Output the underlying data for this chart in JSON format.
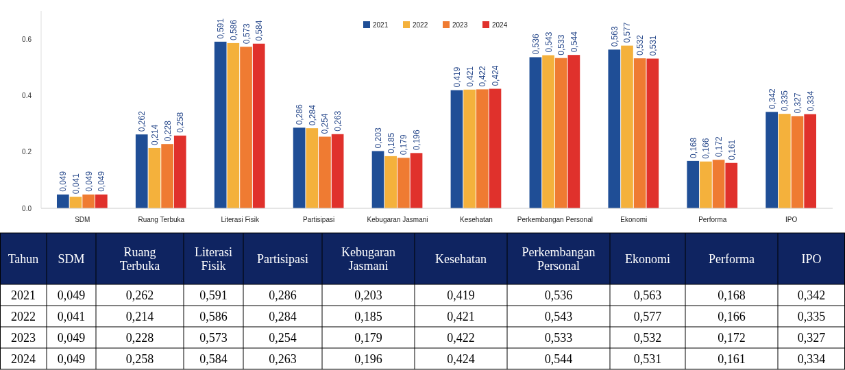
{
  "chart_data": {
    "type": "bar",
    "categories": [
      "SDM",
      "Ruang Terbuka",
      "Literasi Fisik",
      "Partisipasi",
      "Kebugaran Jasmani",
      "Kesehatan",
      "Perkembangan Personal",
      "Ekonomi",
      "Performa",
      "IPO"
    ],
    "series": [
      {
        "name": "2021",
        "color": "#1f4e96",
        "values": [
          0.049,
          0.262,
          0.591,
          0.286,
          0.203,
          0.419,
          0.536,
          0.563,
          0.168,
          0.342
        ],
        "value_labels": [
          "0,049",
          "0,262",
          "0,591",
          "0,286",
          "0,203",
          "0,419",
          "0,536",
          "0,563",
          "0,168",
          "0,342"
        ]
      },
      {
        "name": "2022",
        "color": "#f4b13c",
        "values": [
          0.041,
          0.214,
          0.586,
          0.284,
          0.185,
          0.421,
          0.543,
          0.577,
          0.166,
          0.335
        ],
        "value_labels": [
          "0,041",
          "0,214",
          "0,586",
          "0,284",
          "0,185",
          "0,421",
          "0,543",
          "0,577",
          "0,166",
          "0,335"
        ]
      },
      {
        "name": "2023",
        "color": "#ef7b32",
        "values": [
          0.049,
          0.228,
          0.573,
          0.254,
          0.179,
          0.422,
          0.533,
          0.532,
          0.172,
          0.327
        ],
        "value_labels": [
          "0,049",
          "0,228",
          "0,573",
          "0,254",
          "0,179",
          "0,422",
          "0,533",
          "0,532",
          "0,172",
          "0,327"
        ]
      },
      {
        "name": "2024",
        "color": "#e0312c",
        "values": [
          0.049,
          0.258,
          0.584,
          0.263,
          0.196,
          0.424,
          0.544,
          0.531,
          0.161,
          0.334
        ],
        "value_labels": [
          "0,049",
          "0,258",
          "0,584",
          "0,263",
          "0,196",
          "0,424",
          "0,544",
          "0,531",
          "0,161",
          "0,334"
        ]
      }
    ],
    "ylim": [
      0,
      0.7
    ],
    "yticks": [
      {
        "value": 0,
        "label": "0.0"
      },
      0.2,
      0.4,
      0.6
    ],
    "legend": "top",
    "annotations": [
      "Tahun"
    ]
  }
}
